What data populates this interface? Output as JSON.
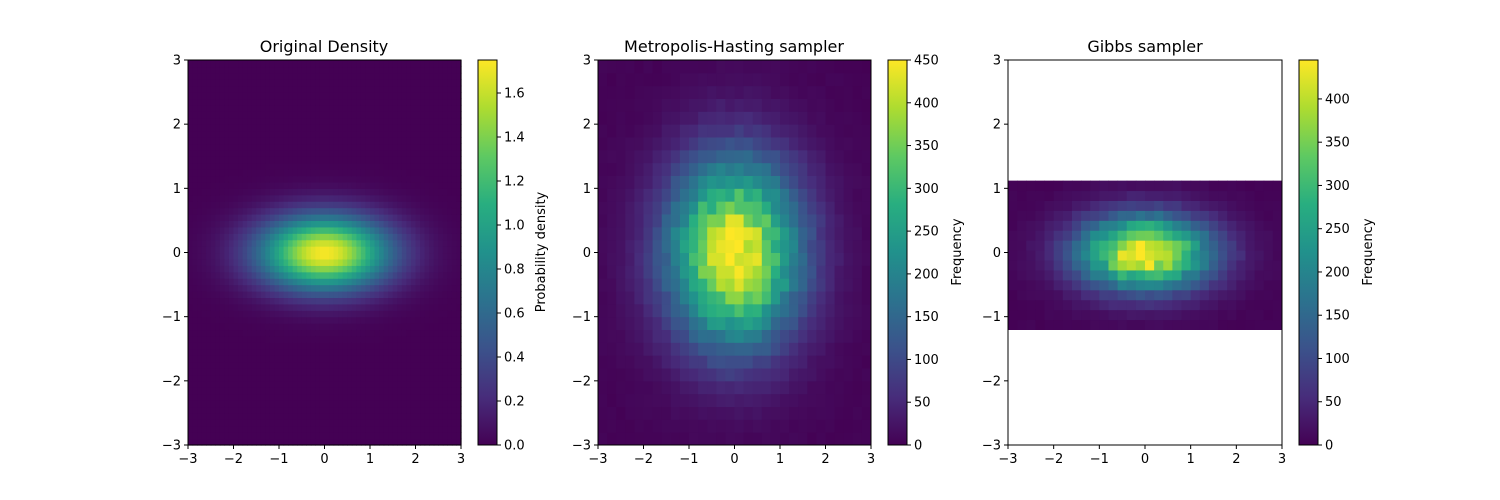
{
  "chart_data": [
    {
      "type": "heatmap",
      "title": "Original Density",
      "xlim": [
        -3,
        3
      ],
      "ylim": [
        -3,
        3
      ],
      "xticks": [
        "−3",
        "−2",
        "−1",
        "0",
        "1",
        "2",
        "3"
      ],
      "yticks": [
        "−3",
        "−2",
        "−1",
        "0",
        "1",
        "2",
        "3"
      ],
      "colormap": "viridis",
      "colorbar": {
        "label": "Probability density",
        "range": [
          0,
          1.75
        ],
        "ticks": [
          "0.0",
          "0.2",
          "0.4",
          "0.6",
          "0.8",
          "1.0",
          "1.2",
          "1.4",
          "1.6"
        ]
      },
      "distribution": {
        "mean": [
          0,
          0
        ],
        "std": [
          1.0,
          0.4
        ],
        "peak": 1.74
      }
    },
    {
      "type": "heatmap",
      "title": "Metropolis-Hasting sampler",
      "xlim": [
        -3,
        3
      ],
      "ylim": [
        -3,
        3
      ],
      "xticks": [
        "−3",
        "−2",
        "−1",
        "0",
        "1",
        "2",
        "3"
      ],
      "yticks": [
        "−3",
        "−2",
        "−1",
        "0",
        "1",
        "2",
        "3"
      ],
      "colormap": "viridis",
      "colorbar": {
        "label": "Frequency",
        "range": [
          0,
          450
        ],
        "ticks": [
          "0",
          "50",
          "100",
          "150",
          "200",
          "250",
          "300",
          "350",
          "400",
          "450"
        ]
      },
      "histogram": {
        "bins": [
          30,
          30
        ],
        "xrange": [
          -3,
          3
        ],
        "yrange": [
          -3,
          3
        ],
        "center": [
          0,
          0
        ],
        "std": [
          1.0,
          1.0
        ],
        "peak": 450
      }
    },
    {
      "type": "heatmap",
      "title": "Gibbs sampler",
      "xlim": [
        -3,
        3
      ],
      "ylim": [
        -3,
        3
      ],
      "xticks": [
        "−3",
        "−2",
        "−1",
        "0",
        "1",
        "2",
        "3"
      ],
      "yticks": [
        "−3",
        "−2",
        "−1",
        "0",
        "1",
        "2",
        "3"
      ],
      "colormap": "viridis",
      "colorbar": {
        "label": "Frequency",
        "range": [
          0,
          445
        ],
        "ticks": [
          "0",
          "50",
          "100",
          "150",
          "200",
          "250",
          "300",
          "350",
          "400"
        ]
      },
      "histogram": {
        "bins": [
          30,
          15
        ],
        "xrange": [
          -3,
          3
        ],
        "yrange": [
          -1.2,
          1.12
        ],
        "center": [
          0,
          0
        ],
        "std": [
          1.0,
          0.4
        ],
        "peak": 445
      }
    }
  ]
}
